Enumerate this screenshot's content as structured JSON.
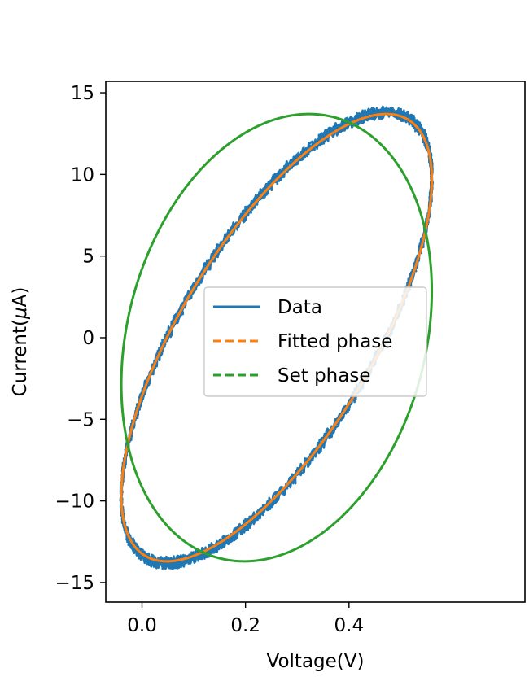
{
  "chart_data": {
    "type": "line",
    "title": "",
    "xlabel": "Voltage(V)",
    "ylabel_prefix": "Current(",
    "ylabel_symbol": "μ",
    "ylabel_suffix": "A)",
    "xlim": [
      -0.07,
      0.74
    ],
    "ylim": [
      -16.2,
      15.7
    ],
    "xticks": [
      0.0,
      0.2,
      0.4
    ],
    "xtick_labels": [
      "0.0",
      "0.2",
      "0.4"
    ],
    "yticks": [
      -15,
      -10,
      -5,
      0,
      5,
      10,
      15
    ],
    "ytick_labels": [
      "−15",
      "−10",
      "−5",
      "0",
      "5",
      "10",
      "15"
    ],
    "grid": false,
    "legend_position": "center",
    "series": [
      {
        "name": "Data",
        "color": "#1f77b4",
        "style": "solid",
        "model": {
          "v_offset": 0.26,
          "v_amplitude": 0.3,
          "i_amplitude": 13.8,
          "phase_deg": 45,
          "noise": 0.35
        }
      },
      {
        "name": "Fitted phase",
        "color": "#ff7f0e",
        "style": "dashed",
        "model": {
          "v_offset": 0.26,
          "v_amplitude": 0.3,
          "i_amplitude": 13.7,
          "phase_deg": 45
        }
      },
      {
        "name": "Set phase",
        "color": "#2ca02c",
        "style": "dashed",
        "model": {
          "v_offset": 0.26,
          "v_amplitude": 0.3,
          "i_amplitude": 13.7,
          "phase_deg": 78
        }
      }
    ]
  }
}
